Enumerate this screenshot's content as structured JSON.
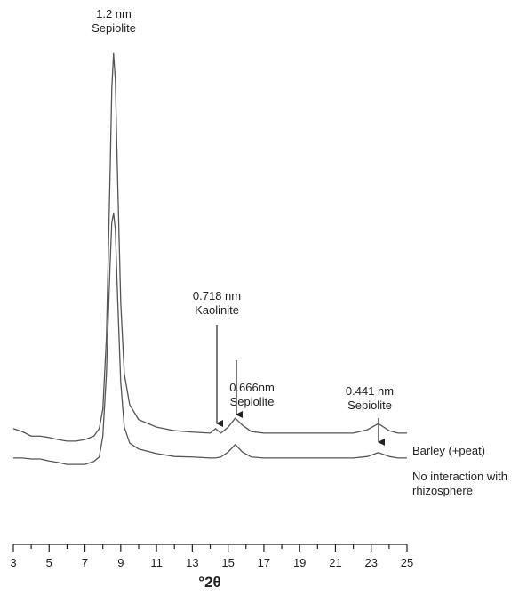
{
  "chart_data": {
    "type": "line",
    "xlabel": "°2θ",
    "x": [
      3,
      3.5,
      4,
      4.5,
      5,
      5.5,
      6,
      6.5,
      7,
      7.5,
      7.8,
      8.0,
      8.2,
      8.4,
      8.5,
      8.6,
      8.7,
      8.8,
      9.0,
      9.2,
      9.5,
      10,
      11,
      12,
      13,
      14,
      14.3,
      14.6,
      15,
      15.4,
      15.8,
      16.3,
      17,
      18,
      19,
      20,
      21,
      22,
      22.8,
      23.4,
      24,
      24.5,
      25
    ],
    "series": [
      {
        "name": "Barley (+peat)",
        "color": "#555555",
        "values": [
          21.1,
          20.5,
          19.6,
          19.6,
          19.3,
          18.9,
          18.6,
          18.6,
          18.9,
          19.6,
          21.1,
          25,
          39.3,
          71.4,
          89.3,
          96.4,
          91.1,
          75,
          46.4,
          32.1,
          25.9,
          22.9,
          21.4,
          20.7,
          20.4,
          20.2,
          21.1,
          20.2,
          21.4,
          23.2,
          21.8,
          20.5,
          20.2,
          20.2,
          20.2,
          20.2,
          20.2,
          20.2,
          20.9,
          22.1,
          20.7,
          20.2,
          20.2
        ]
      },
      {
        "name": "No interaction with rhizosphere",
        "color": "#555555",
        "values": [
          15.2,
          15.2,
          15,
          15,
          14.6,
          14.3,
          13.9,
          13.9,
          13.9,
          14.5,
          15.4,
          19.6,
          32.1,
          53.6,
          62.5,
          64.3,
          61.1,
          50,
          30.4,
          21.4,
          18.2,
          17,
          16.1,
          15.5,
          15.4,
          15.2,
          15.2,
          15.4,
          16.4,
          17.9,
          16.4,
          15.4,
          15.2,
          15.2,
          15.2,
          15.2,
          15.2,
          15.2,
          15.5,
          16.3,
          15.5,
          15.2,
          15.2
        ]
      }
    ],
    "xlim": [
      3,
      25
    ],
    "xticks": [
      3,
      5,
      7,
      9,
      11,
      13,
      15,
      17,
      19,
      21,
      23,
      25
    ],
    "xminorticks": [
      4,
      6,
      8,
      10,
      12,
      14,
      16,
      18,
      20,
      22,
      24
    ],
    "ylim": [
      0,
      100
    ],
    "annotations": [
      {
        "line1": "1.2 nm",
        "line2": "Sepiolite"
      },
      {
        "line1": "0.718 nm",
        "line2": "Kaolinite"
      },
      {
        "line1": "0.666nm",
        "line2": "Sepiolite"
      },
      {
        "line1": "0.441 nm",
        "line2": "Sepiolite"
      }
    ]
  }
}
